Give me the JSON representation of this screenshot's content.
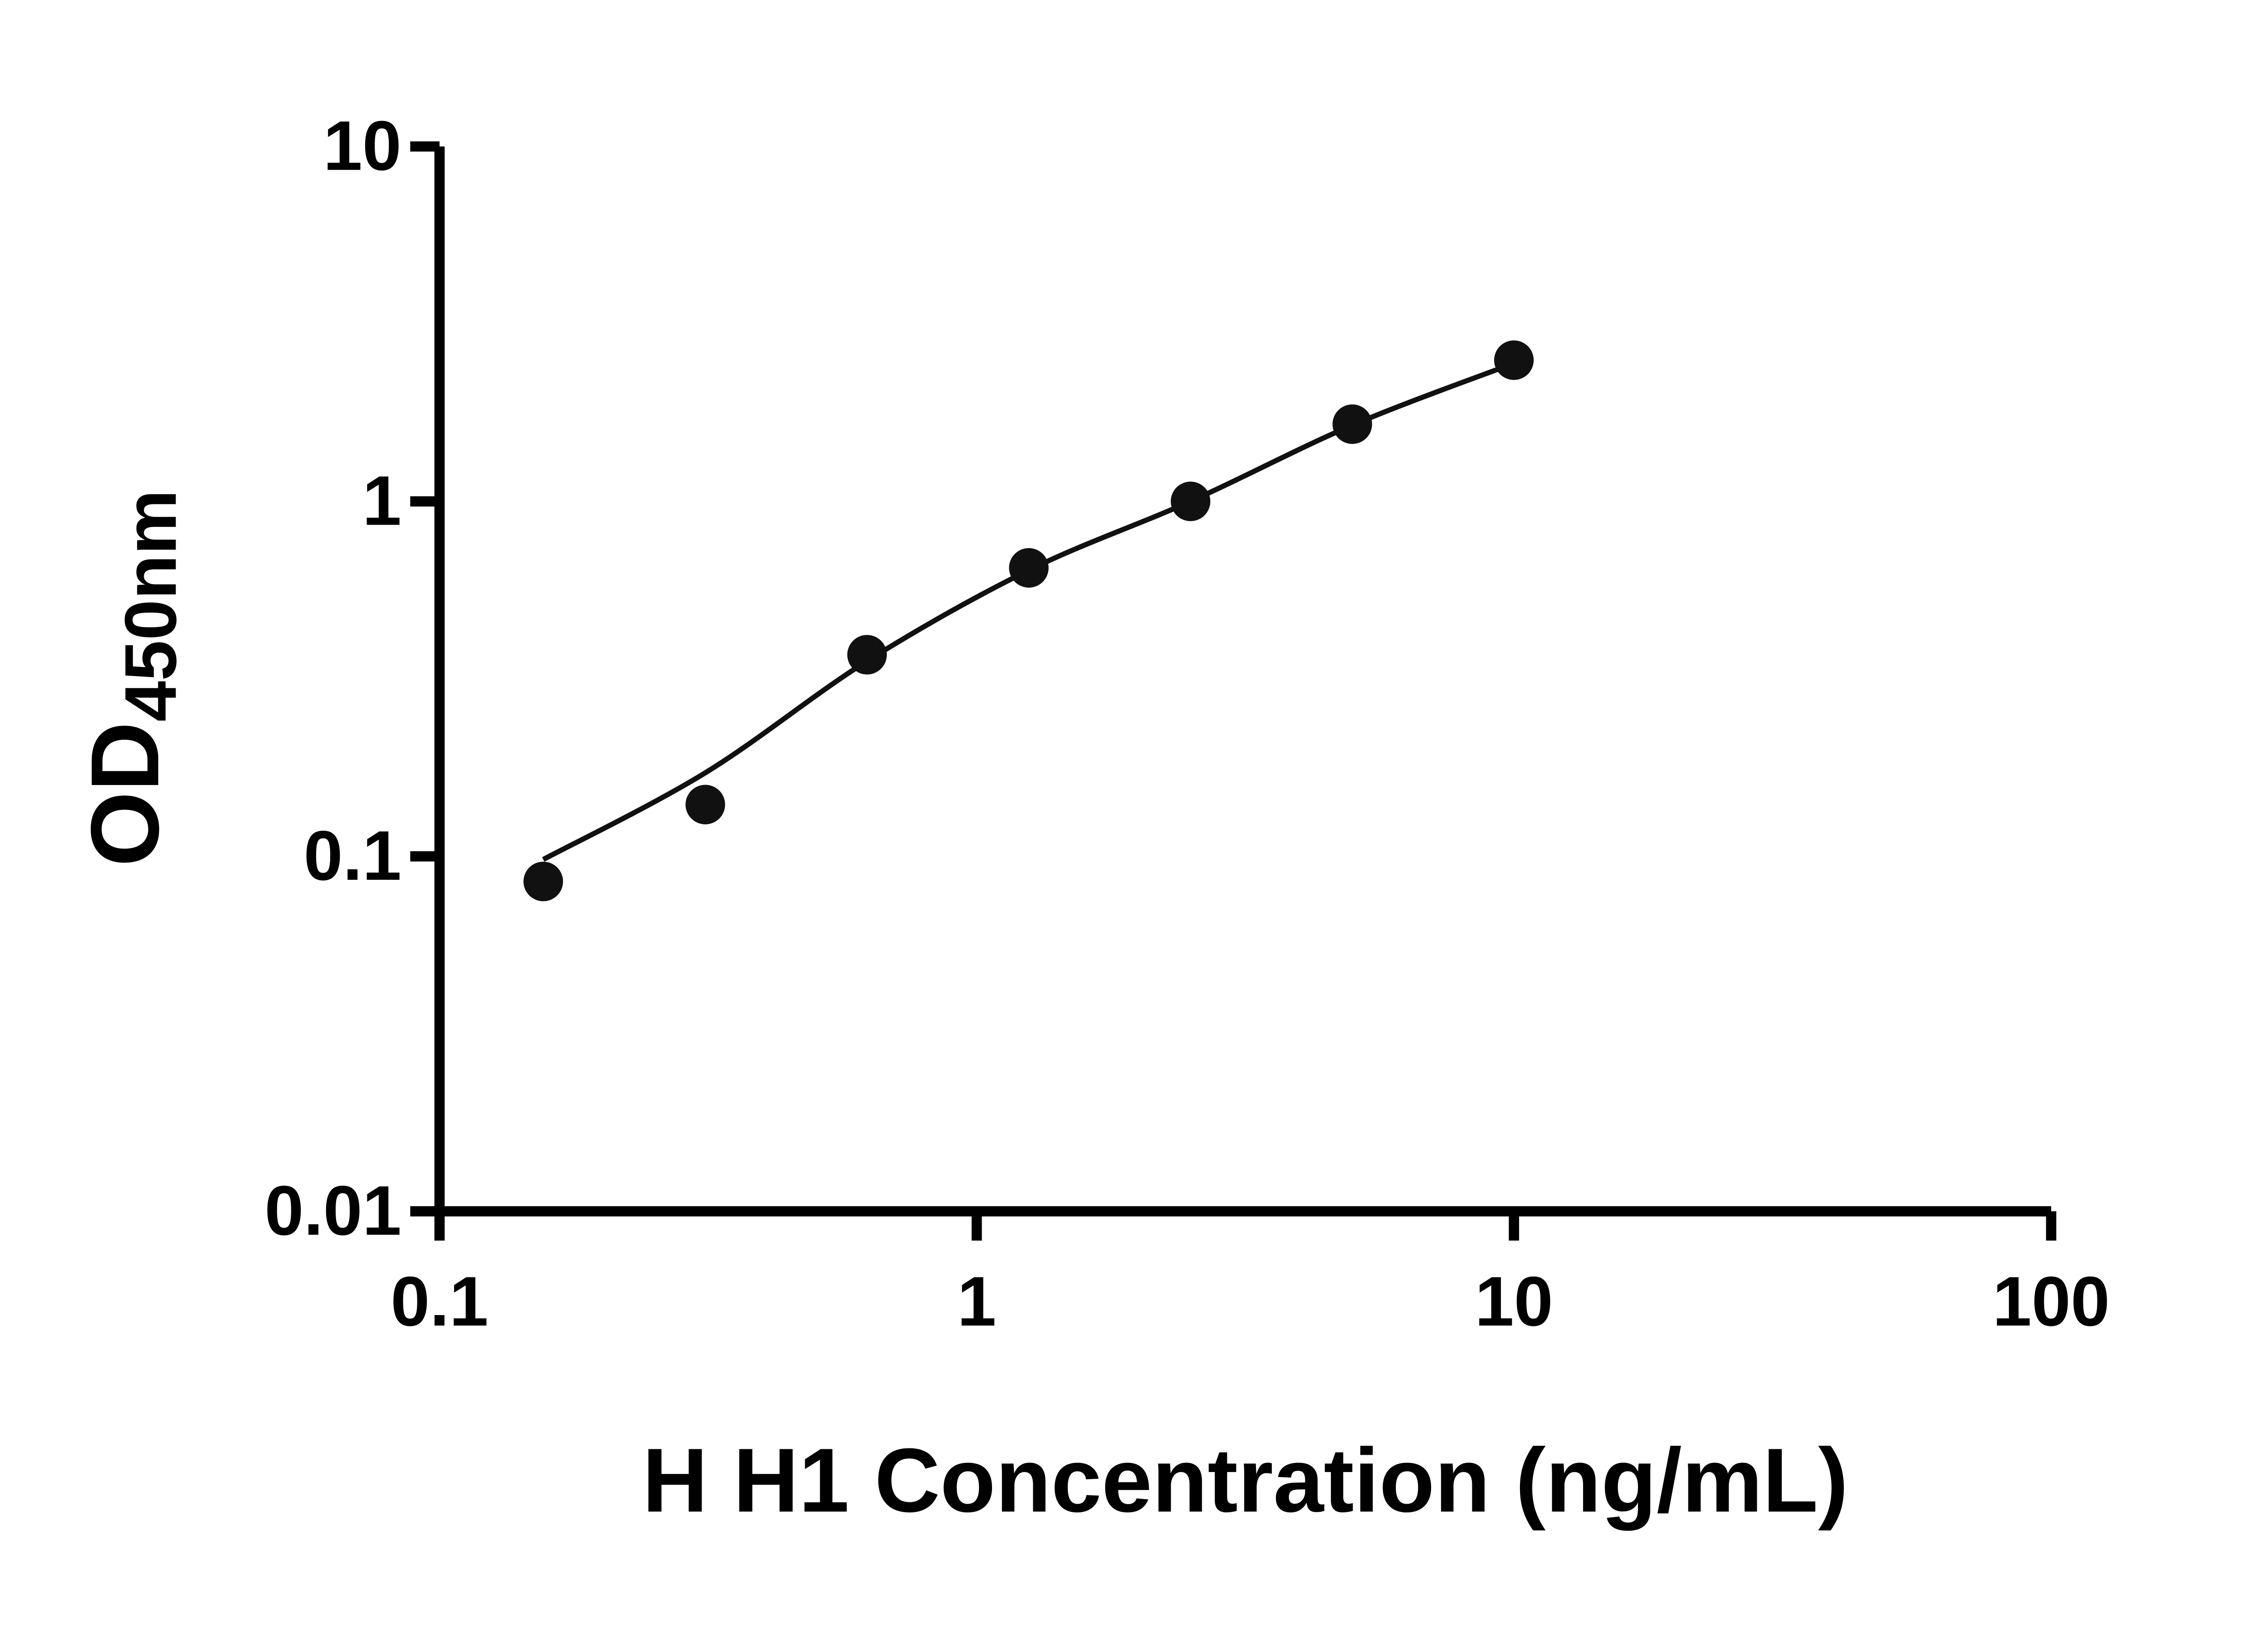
{
  "chart_data": {
    "type": "scatter",
    "title": "",
    "xlabel": "H H1 Concentration (ng/mL)",
    "ylabel_main": "OD",
    "ylabel_sub": "450nm",
    "x_scale": "log",
    "y_scale": "log",
    "xlim": [
      0.1,
      100
    ],
    "ylim": [
      0.01,
      10
    ],
    "x_ticks": [
      0.1,
      1,
      10,
      100
    ],
    "x_tick_labels": [
      "0.1",
      "1",
      "10",
      "100"
    ],
    "y_ticks": [
      0.01,
      0.1,
      1,
      10
    ],
    "y_tick_labels": [
      "0.01",
      "0.1",
      "1",
      "10"
    ],
    "grid": false,
    "legend": "none",
    "background": "#ffffff",
    "axis_color": "#000000",
    "marker_color": "#111111",
    "line_color": "#111111",
    "points": [
      {
        "x": 0.156,
        "y": 0.085
      },
      {
        "x": 0.3125,
        "y": 0.14
      },
      {
        "x": 0.625,
        "y": 0.37
      },
      {
        "x": 1.25,
        "y": 0.65
      },
      {
        "x": 2.5,
        "y": 1.0
      },
      {
        "x": 5,
        "y": 1.65
      },
      {
        "x": 10,
        "y": 2.5
      }
    ],
    "fit_curve": [
      {
        "x": 0.156,
        "y": 0.098
      },
      {
        "x": 0.3125,
        "y": 0.172
      },
      {
        "x": 0.625,
        "y": 0.355
      },
      {
        "x": 1.25,
        "y": 0.64
      },
      {
        "x": 2.5,
        "y": 1.0
      },
      {
        "x": 5,
        "y": 1.64
      },
      {
        "x": 10,
        "y": 2.45
      }
    ]
  }
}
